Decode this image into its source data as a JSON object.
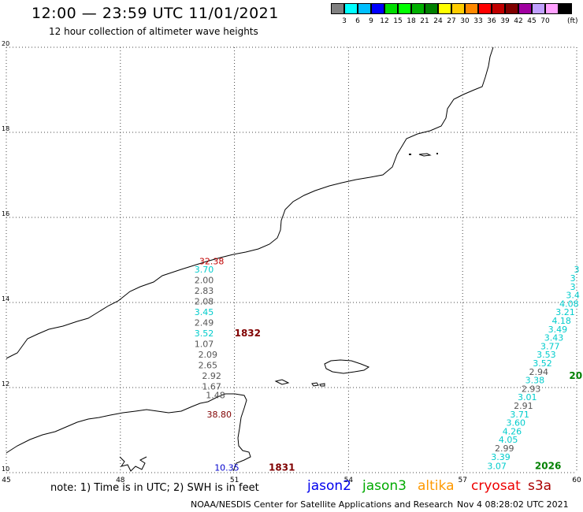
{
  "header": {
    "title": "12:00 — 23:59 UTC 11/01/2021",
    "subtitle": "12 hour collection of altimeter wave heights"
  },
  "legend": {
    "unit": "(ft)",
    "items": [
      {
        "label": "",
        "color": "#808080"
      },
      {
        "label": "3",
        "color": "#00ffff"
      },
      {
        "label": "6",
        "color": "#00bfff"
      },
      {
        "label": "9",
        "color": "#0000ff"
      },
      {
        "label": "12",
        "color": "#00dd00"
      },
      {
        "label": "15",
        "color": "#00ff00"
      },
      {
        "label": "18",
        "color": "#00b000"
      },
      {
        "label": "21",
        "color": "#008000"
      },
      {
        "label": "24",
        "color": "#ffff00"
      },
      {
        "label": "27",
        "color": "#ffcc00"
      },
      {
        "label": "30",
        "color": "#ff8800"
      },
      {
        "label": "33",
        "color": "#ff0000"
      },
      {
        "label": "36",
        "color": "#c00000"
      },
      {
        "label": "39",
        "color": "#800000"
      },
      {
        "label": "42",
        "color": "#a000a0"
      },
      {
        "label": "45",
        "color": "#c0a0ff"
      },
      {
        "label": "70",
        "color": "#ffa0ff"
      },
      {
        "label": "",
        "color": "#000000"
      }
    ]
  },
  "axes": {
    "lon_ticks": [
      "45",
      "48",
      "51",
      "54",
      "57",
      "60"
    ],
    "lat_ticks": [
      "10",
      "12",
      "14",
      "16",
      "18",
      "20"
    ],
    "lon_range": [
      45,
      60
    ],
    "lat_range": [
      10,
      20
    ],
    "grid": true
  },
  "passes": [
    {
      "label": "1832",
      "color": "#800000",
      "lon": 51.0,
      "lat": 13.2
    },
    {
      "label": "1831",
      "color": "#800000",
      "lon": 51.9,
      "lat": 10.05
    },
    {
      "label": "20",
      "color": "#008000",
      "lon": 59.8,
      "lat": 12.2
    },
    {
      "label": "2026",
      "color": "#008000",
      "lon": 58.9,
      "lat": 10.08
    }
  ],
  "track_a": {
    "color_map": {
      "cyan": "#00cccc",
      "gray": "#555555",
      "red": "#c00000",
      "blue": "#0000cc"
    },
    "points": [
      {
        "v": "32.38",
        "c": "#c00000",
        "lon": 50.4,
        "lat": 14.9
      },
      {
        "v": "3.70",
        "c": "#00cccc",
        "lon": 50.2,
        "lat": 14.7
      },
      {
        "v": "2.00",
        "c": "#555555",
        "lon": 50.2,
        "lat": 14.45
      },
      {
        "v": "2.83",
        "c": "#555555",
        "lon": 50.2,
        "lat": 14.2
      },
      {
        "v": "2.08",
        "c": "#555555",
        "lon": 50.2,
        "lat": 13.95
      },
      {
        "v": "3.45",
        "c": "#00cccc",
        "lon": 50.2,
        "lat": 13.7
      },
      {
        "v": "2.49",
        "c": "#555555",
        "lon": 50.2,
        "lat": 13.45
      },
      {
        "v": "3.52",
        "c": "#00cccc",
        "lon": 50.2,
        "lat": 13.2
      },
      {
        "v": "1.07",
        "c": "#555555",
        "lon": 50.2,
        "lat": 12.95
      },
      {
        "v": "2.09",
        "c": "#555555",
        "lon": 50.3,
        "lat": 12.7
      },
      {
        "v": "2.65",
        "c": "#555555",
        "lon": 50.3,
        "lat": 12.45
      },
      {
        "v": "2.92",
        "c": "#555555",
        "lon": 50.4,
        "lat": 12.2
      },
      {
        "v": "1.67",
        "c": "#555555",
        "lon": 50.4,
        "lat": 11.95
      },
      {
        "v": "1.48",
        "c": "#555555",
        "lon": 50.5,
        "lat": 11.75
      },
      {
        "v": "38.80",
        "c": "#800000",
        "lon": 50.6,
        "lat": 11.3
      },
      {
        "v": "10.35",
        "c": "#0000cc",
        "lon": 50.8,
        "lat": 10.05
      }
    ]
  },
  "track_b": {
    "points": [
      {
        "v": "3",
        "c": "#00cccc",
        "lon": 60.0,
        "lat": 14.7
      },
      {
        "v": "3",
        "c": "#00cccc",
        "lon": 59.9,
        "lat": 14.5
      },
      {
        "v": "3",
        "c": "#00cccc",
        "lon": 59.9,
        "lat": 14.3
      },
      {
        "v": "3.4",
        "c": "#00cccc",
        "lon": 59.9,
        "lat": 14.1
      },
      {
        "v": "4.08",
        "c": "#00cccc",
        "lon": 59.8,
        "lat": 13.9
      },
      {
        "v": "3.21",
        "c": "#00cccc",
        "lon": 59.7,
        "lat": 13.7
      },
      {
        "v": "4.18",
        "c": "#00cccc",
        "lon": 59.6,
        "lat": 13.5
      },
      {
        "v": "3.49",
        "c": "#00cccc",
        "lon": 59.5,
        "lat": 13.3
      },
      {
        "v": "3.43",
        "c": "#00cccc",
        "lon": 59.4,
        "lat": 13.1
      },
      {
        "v": "3.77",
        "c": "#00cccc",
        "lon": 59.3,
        "lat": 12.9
      },
      {
        "v": "3.53",
        "c": "#00cccc",
        "lon": 59.2,
        "lat": 12.7
      },
      {
        "v": "3.52",
        "c": "#00cccc",
        "lon": 59.1,
        "lat": 12.5
      },
      {
        "v": "2.94",
        "c": "#555555",
        "lon": 59.0,
        "lat": 12.3
      },
      {
        "v": "3.38",
        "c": "#00cccc",
        "lon": 58.9,
        "lat": 12.1
      },
      {
        "v": "2.93",
        "c": "#555555",
        "lon": 58.8,
        "lat": 11.9
      },
      {
        "v": "3.01",
        "c": "#00cccc",
        "lon": 58.7,
        "lat": 11.7
      },
      {
        "v": "2.91",
        "c": "#555555",
        "lon": 58.6,
        "lat": 11.5
      },
      {
        "v": "3.71",
        "c": "#00cccc",
        "lon": 58.5,
        "lat": 11.3
      },
      {
        "v": "3.60",
        "c": "#00cccc",
        "lon": 58.4,
        "lat": 11.1
      },
      {
        "v": "4.26",
        "c": "#00cccc",
        "lon": 58.3,
        "lat": 10.9
      },
      {
        "v": "4.05",
        "c": "#00cccc",
        "lon": 58.2,
        "lat": 10.7
      },
      {
        "v": "2.99",
        "c": "#555555",
        "lon": 58.1,
        "lat": 10.5
      },
      {
        "v": "3.39",
        "c": "#00cccc",
        "lon": 58.0,
        "lat": 10.3
      },
      {
        "v": "3.07",
        "c": "#00cccc",
        "lon": 57.9,
        "lat": 10.08
      }
    ]
  },
  "footer": {
    "note": "note: 1) Time is in UTC; 2) SWH is in feet",
    "satellites": [
      {
        "name": "jason2",
        "color": "#0000ee"
      },
      {
        "name": "jason3",
        "color": "#00aa00"
      },
      {
        "name": "altika",
        "color": "#ff9900"
      },
      {
        "name": "cryosat",
        "color": "#ee0000"
      },
      {
        "name": "s3a",
        "color": "#aa0000"
      }
    ],
    "credit": "NOAA/NESDIS Center for Satellite Applications and Research",
    "timestamp": "Nov  4 08:28:02 UTC 2021"
  }
}
